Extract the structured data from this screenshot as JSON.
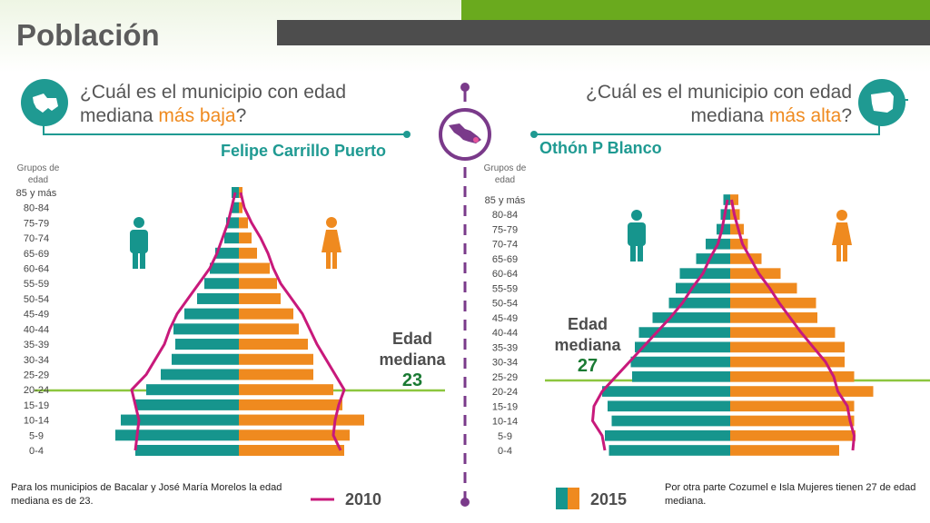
{
  "header": {
    "title": "Población"
  },
  "left": {
    "question_a": "¿Cuál es el municipio con edad",
    "question_b": "mediana ",
    "question_hl": "más baja",
    "question_c": "?",
    "municipio": "Felipe Carrillo Puerto",
    "groups_header_a": "Grupos de",
    "groups_header_b": "edad",
    "edad_a": "Edad",
    "edad_b": "mediana",
    "edad_value": "23",
    "note": "Para los municipios de Bacalar y José María Morelos la edad mediana es de 23."
  },
  "right": {
    "question_a": "¿Cuál es el municipio con edad",
    "question_b": "mediana ",
    "question_hl": "más alta",
    "question_c": "?",
    "municipio": "Othón P Blanco",
    "groups_header_a": "Grupos de",
    "groups_header_b": "edad",
    "edad_a": "Edad",
    "edad_b": "mediana",
    "edad_value": "27",
    "note": "Por otra parte Cozumel e Isla Mujeres tienen 27 de edad mediana."
  },
  "legend": {
    "year_2010": "2010",
    "year_2015": "2015"
  },
  "colors": {
    "male": "#16958d",
    "female": "#ef8a1f",
    "line_2010": "#c8197b",
    "median_line": "#8cc63e",
    "accent_green": "#6aaa1e",
    "dark_bar": "#4d4d4d",
    "icon_teal": "#1f9a92"
  },
  "icons": [
    "map-quintana-roo-icon",
    "map-mexico-icon",
    "map-othon-blanco-icon",
    "male-icon",
    "female-icon"
  ],
  "chart_data": [
    {
      "type": "bar",
      "title": "Felipe Carrillo Puerto",
      "orientation": "population-pyramid",
      "categories": [
        "85 y más",
        "80-84",
        "75-79",
        "70-74",
        "65-69",
        "60-64",
        "55-59",
        "50-54",
        "45-49",
        "40-44",
        "35-39",
        "30-34",
        "25-29",
        "20-24",
        "15-19",
        "10-14",
        "5-9",
        "0-4"
      ],
      "series": [
        {
          "name": "2015",
          "gender": "male",
          "values": [
            0.4,
            0.4,
            0.7,
            0.8,
            1.3,
            1.6,
            1.9,
            2.3,
            3.0,
            3.6,
            3.5,
            3.7,
            4.3,
            5.1,
            5.7,
            6.5,
            6.8,
            5.7
          ]
        },
        {
          "name": "2015",
          "gender": "female",
          "values": [
            0.2,
            0.2,
            0.5,
            0.7,
            1.0,
            1.7,
            2.1,
            2.3,
            3.0,
            3.3,
            3.8,
            4.1,
            4.1,
            5.2,
            5.7,
            6.9,
            6.1,
            5.8
          ]
        },
        {
          "name": "2010",
          "gender": "male",
          "values": [
            0.2,
            0.4,
            0.6,
            0.9,
            1.2,
            1.6,
            2.2,
            2.8,
            3.4,
            3.8,
            4.1,
            4.6,
            5.1,
            5.9,
            5.7,
            5.5,
            5.6,
            5.7
          ]
        },
        {
          "name": "2010",
          "gender": "female",
          "values": [
            0.1,
            0.3,
            0.7,
            1.2,
            1.6,
            1.9,
            2.3,
            2.9,
            3.5,
            3.9,
            4.3,
            4.8,
            5.3,
            5.8,
            5.5,
            5.3,
            5.2,
            5.6
          ]
        }
      ],
      "median_age": 23
    },
    {
      "type": "bar",
      "title": "Othón P Blanco",
      "orientation": "population-pyramid",
      "categories": [
        "85 y más",
        "80-84",
        "75-79",
        "70-74",
        "65-69",
        "60-64",
        "55-59",
        "50-54",
        "45-49",
        "40-44",
        "35-39",
        "30-34",
        "25-29",
        "20-24",
        "15-19",
        "10-14",
        "5-9",
        "0-4"
      ],
      "series": [
        {
          "name": "2015",
          "gender": "male",
          "values": [
            0.5,
            0.7,
            1.0,
            1.8,
            2.5,
            3.7,
            4.0,
            4.5,
            5.7,
            6.7,
            7.0,
            7.3,
            7.2,
            9.4,
            9.0,
            8.7,
            9.2,
            8.9
          ]
        },
        {
          "name": "2015",
          "gender": "female",
          "values": [
            0.6,
            0.7,
            1.0,
            1.3,
            2.3,
            3.7,
            4.9,
            6.3,
            6.4,
            7.7,
            8.4,
            8.4,
            9.1,
            10.5,
            9.1,
            9.1,
            9.2,
            8.0
          ]
        },
        {
          "name": "2010",
          "gender": "male",
          "values": [
            0.2,
            0.4,
            0.6,
            0.9,
            1.5,
            2.0,
            2.8,
            3.5,
            4.4,
            5.4,
            6.4,
            7.4,
            8.4,
            9.4,
            10.0,
            10.1,
            9.4,
            9.2
          ]
        },
        {
          "name": "2010",
          "gender": "female",
          "values": [
            0.1,
            0.3,
            0.6,
            0.9,
            1.5,
            2.1,
            2.9,
            3.6,
            4.4,
            5.2,
            6.1,
            7.0,
            7.6,
            7.9,
            8.6,
            8.8,
            9.1,
            9.0
          ]
        }
      ],
      "median_age": 27
    }
  ]
}
